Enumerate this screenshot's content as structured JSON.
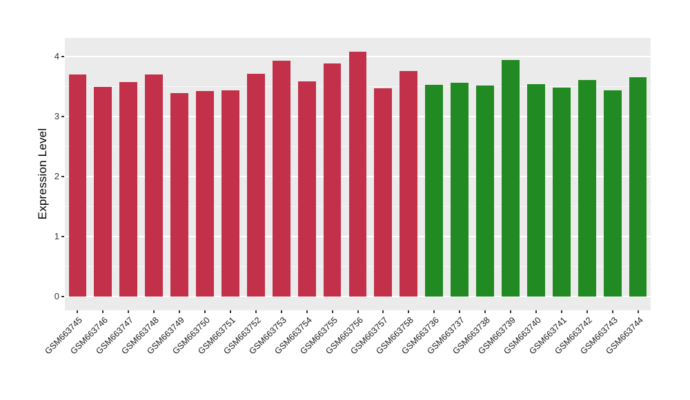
{
  "figure": {
    "background": "#ffffff",
    "panel_background": "#EBEBEB",
    "gridline_color": "#ffffff",
    "axis_text_color": "#333333"
  },
  "chart_data": {
    "type": "bar",
    "title": "",
    "xlabel": "",
    "ylabel": "Expression Level",
    "ylim": [
      0,
      4.3
    ],
    "y_major_ticks": [
      0,
      1,
      2,
      3,
      4
    ],
    "y_minor_ticks": [
      0.5,
      1.5,
      2.5,
      3.5
    ],
    "grid": "white major and minor horizontal gridlines on gray panel",
    "legend": "none",
    "categories": [
      "GSM663745",
      "GSM663746",
      "GSM663747",
      "GSM663748",
      "GSM663749",
      "GSM663750",
      "GSM663751",
      "GSM663752",
      "GSM663753",
      "GSM663754",
      "GSM663755",
      "GSM663756",
      "GSM663757",
      "GSM663758",
      "GSM663736",
      "GSM663737",
      "GSM663738",
      "GSM663739",
      "GSM663740",
      "GSM663741",
      "GSM663742",
      "GSM663743",
      "GSM663744"
    ],
    "values": [
      3.7,
      3.5,
      3.57,
      3.7,
      3.39,
      3.43,
      3.44,
      3.71,
      3.93,
      3.59,
      3.88,
      4.08,
      3.47,
      3.76,
      3.53,
      3.56,
      3.52,
      3.94,
      3.54,
      3.48,
      3.61,
      3.44,
      3.65
    ],
    "group_of_bar": [
      "group1",
      "group1",
      "group1",
      "group1",
      "group1",
      "group1",
      "group1",
      "group1",
      "group1",
      "group1",
      "group1",
      "group1",
      "group1",
      "group1",
      "group2",
      "group2",
      "group2",
      "group2",
      "group2",
      "group2",
      "group2",
      "group2",
      "group2"
    ],
    "group_colors": {
      "group1": "#C2304A",
      "group2": "#228A22"
    }
  }
}
